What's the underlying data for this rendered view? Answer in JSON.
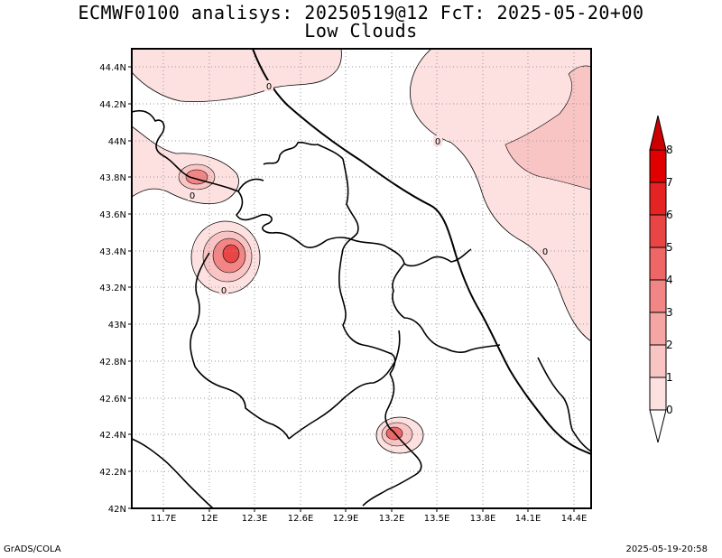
{
  "header": {
    "line1": "ECMWF0100 analisys: 20250519@12 FcT: 2025-05-20+00",
    "line2": "Low Clouds"
  },
  "footer": {
    "credit": "GrADS/COLA",
    "timestamp": "2025-05-19-20:58"
  },
  "map": {
    "lat_labels": [
      "44.4N",
      "44.2N",
      "44N",
      "43.8N",
      "43.6N",
      "43.4N",
      "43.2N",
      "43N",
      "42.8N",
      "42.6N",
      "42.4N",
      "42.2N",
      "42N"
    ],
    "lon_labels": [
      "11.7E",
      "12E",
      "12.3E",
      "12.6E",
      "12.9E",
      "13.2E",
      "13.5E",
      "13.8E",
      "14.1E",
      "14.4E"
    ],
    "contour_labels": [
      "0",
      "0",
      "0",
      "0",
      "0"
    ]
  },
  "colorbar": {
    "levels": [
      "0",
      "1",
      "2",
      "3",
      "4",
      "5",
      "6",
      "7",
      "8"
    ],
    "colors": [
      "#ffffff",
      "#fde0e0",
      "#f9c4c4",
      "#f6a5a5",
      "#f28686",
      "#ee6666",
      "#ea4545",
      "#e52323",
      "#e00000"
    ]
  }
}
